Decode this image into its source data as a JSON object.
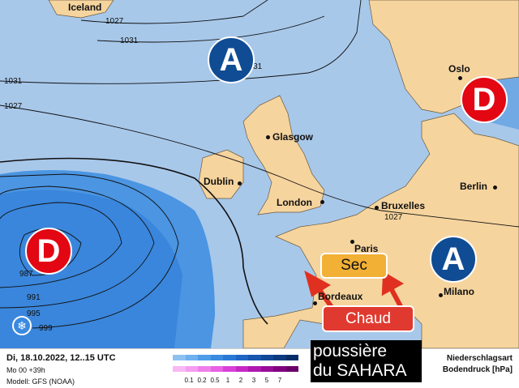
{
  "cities": [
    {
      "name": "Iceland",
      "dot": false
    },
    {
      "name": "Glasgow",
      "dot": true
    },
    {
      "name": "Dublin",
      "dot": true
    },
    {
      "name": "London",
      "dot": true
    },
    {
      "name": "Bruxelles",
      "dot": true
    },
    {
      "name": "Paris",
      "dot": true
    },
    {
      "name": "Bordeaux",
      "dot": true
    },
    {
      "name": "Milano",
      "dot": true
    },
    {
      "name": "Berlin",
      "dot": true
    },
    {
      "name": "Oslo",
      "dot": true
    }
  ],
  "isobar_labels": [
    "1027",
    "1031",
    "1031",
    "1031",
    "1027",
    "987",
    "991",
    "995",
    "999",
    "1027"
  ],
  "pressure_systems": [
    {
      "letter": "A",
      "type": "high",
      "color": "#0f4c93"
    },
    {
      "letter": "D",
      "type": "low",
      "color": "#e30613"
    },
    {
      "letter": "D",
      "type": "low",
      "color": "#e30613"
    },
    {
      "letter": "A",
      "type": "high",
      "color": "#0f4c93"
    }
  ],
  "annotations": {
    "sec": "Sec",
    "chaud": "Chaud",
    "sahara_line1": "poussière",
    "sahara_line2": "du SAHARA"
  },
  "legend": {
    "date": "Di, 18.10.2022, 12..15 UTC",
    "run": "Mo 00 +39h",
    "model": "Modell: GFS (NOAA)",
    "type_label": "Niederschlagsart",
    "pressure_label": "Bodendruck [hPa]",
    "ticks": [
      "0.1",
      "0.2",
      "0.5",
      "1",
      "2",
      "3",
      "5",
      "7"
    ],
    "rain_colors": [
      "#8ec1f0",
      "#6fb0ee",
      "#4e9de8",
      "#3a8ae0",
      "#2a78d6",
      "#1f66c4",
      "#1656ad",
      "#0f4896",
      "#0a3a80",
      "#062d6a"
    ],
    "snow_colors": [
      "#f8b8f4",
      "#f49ef0",
      "#ef7feb",
      "#e860e4",
      "#d840d8",
      "#c628c6",
      "#b018b0",
      "#980c98",
      "#800080",
      "#680068"
    ]
  },
  "colors": {
    "sea": "#a8c8ea",
    "land": "#f6d49e",
    "precip": "#3b8ce0"
  }
}
